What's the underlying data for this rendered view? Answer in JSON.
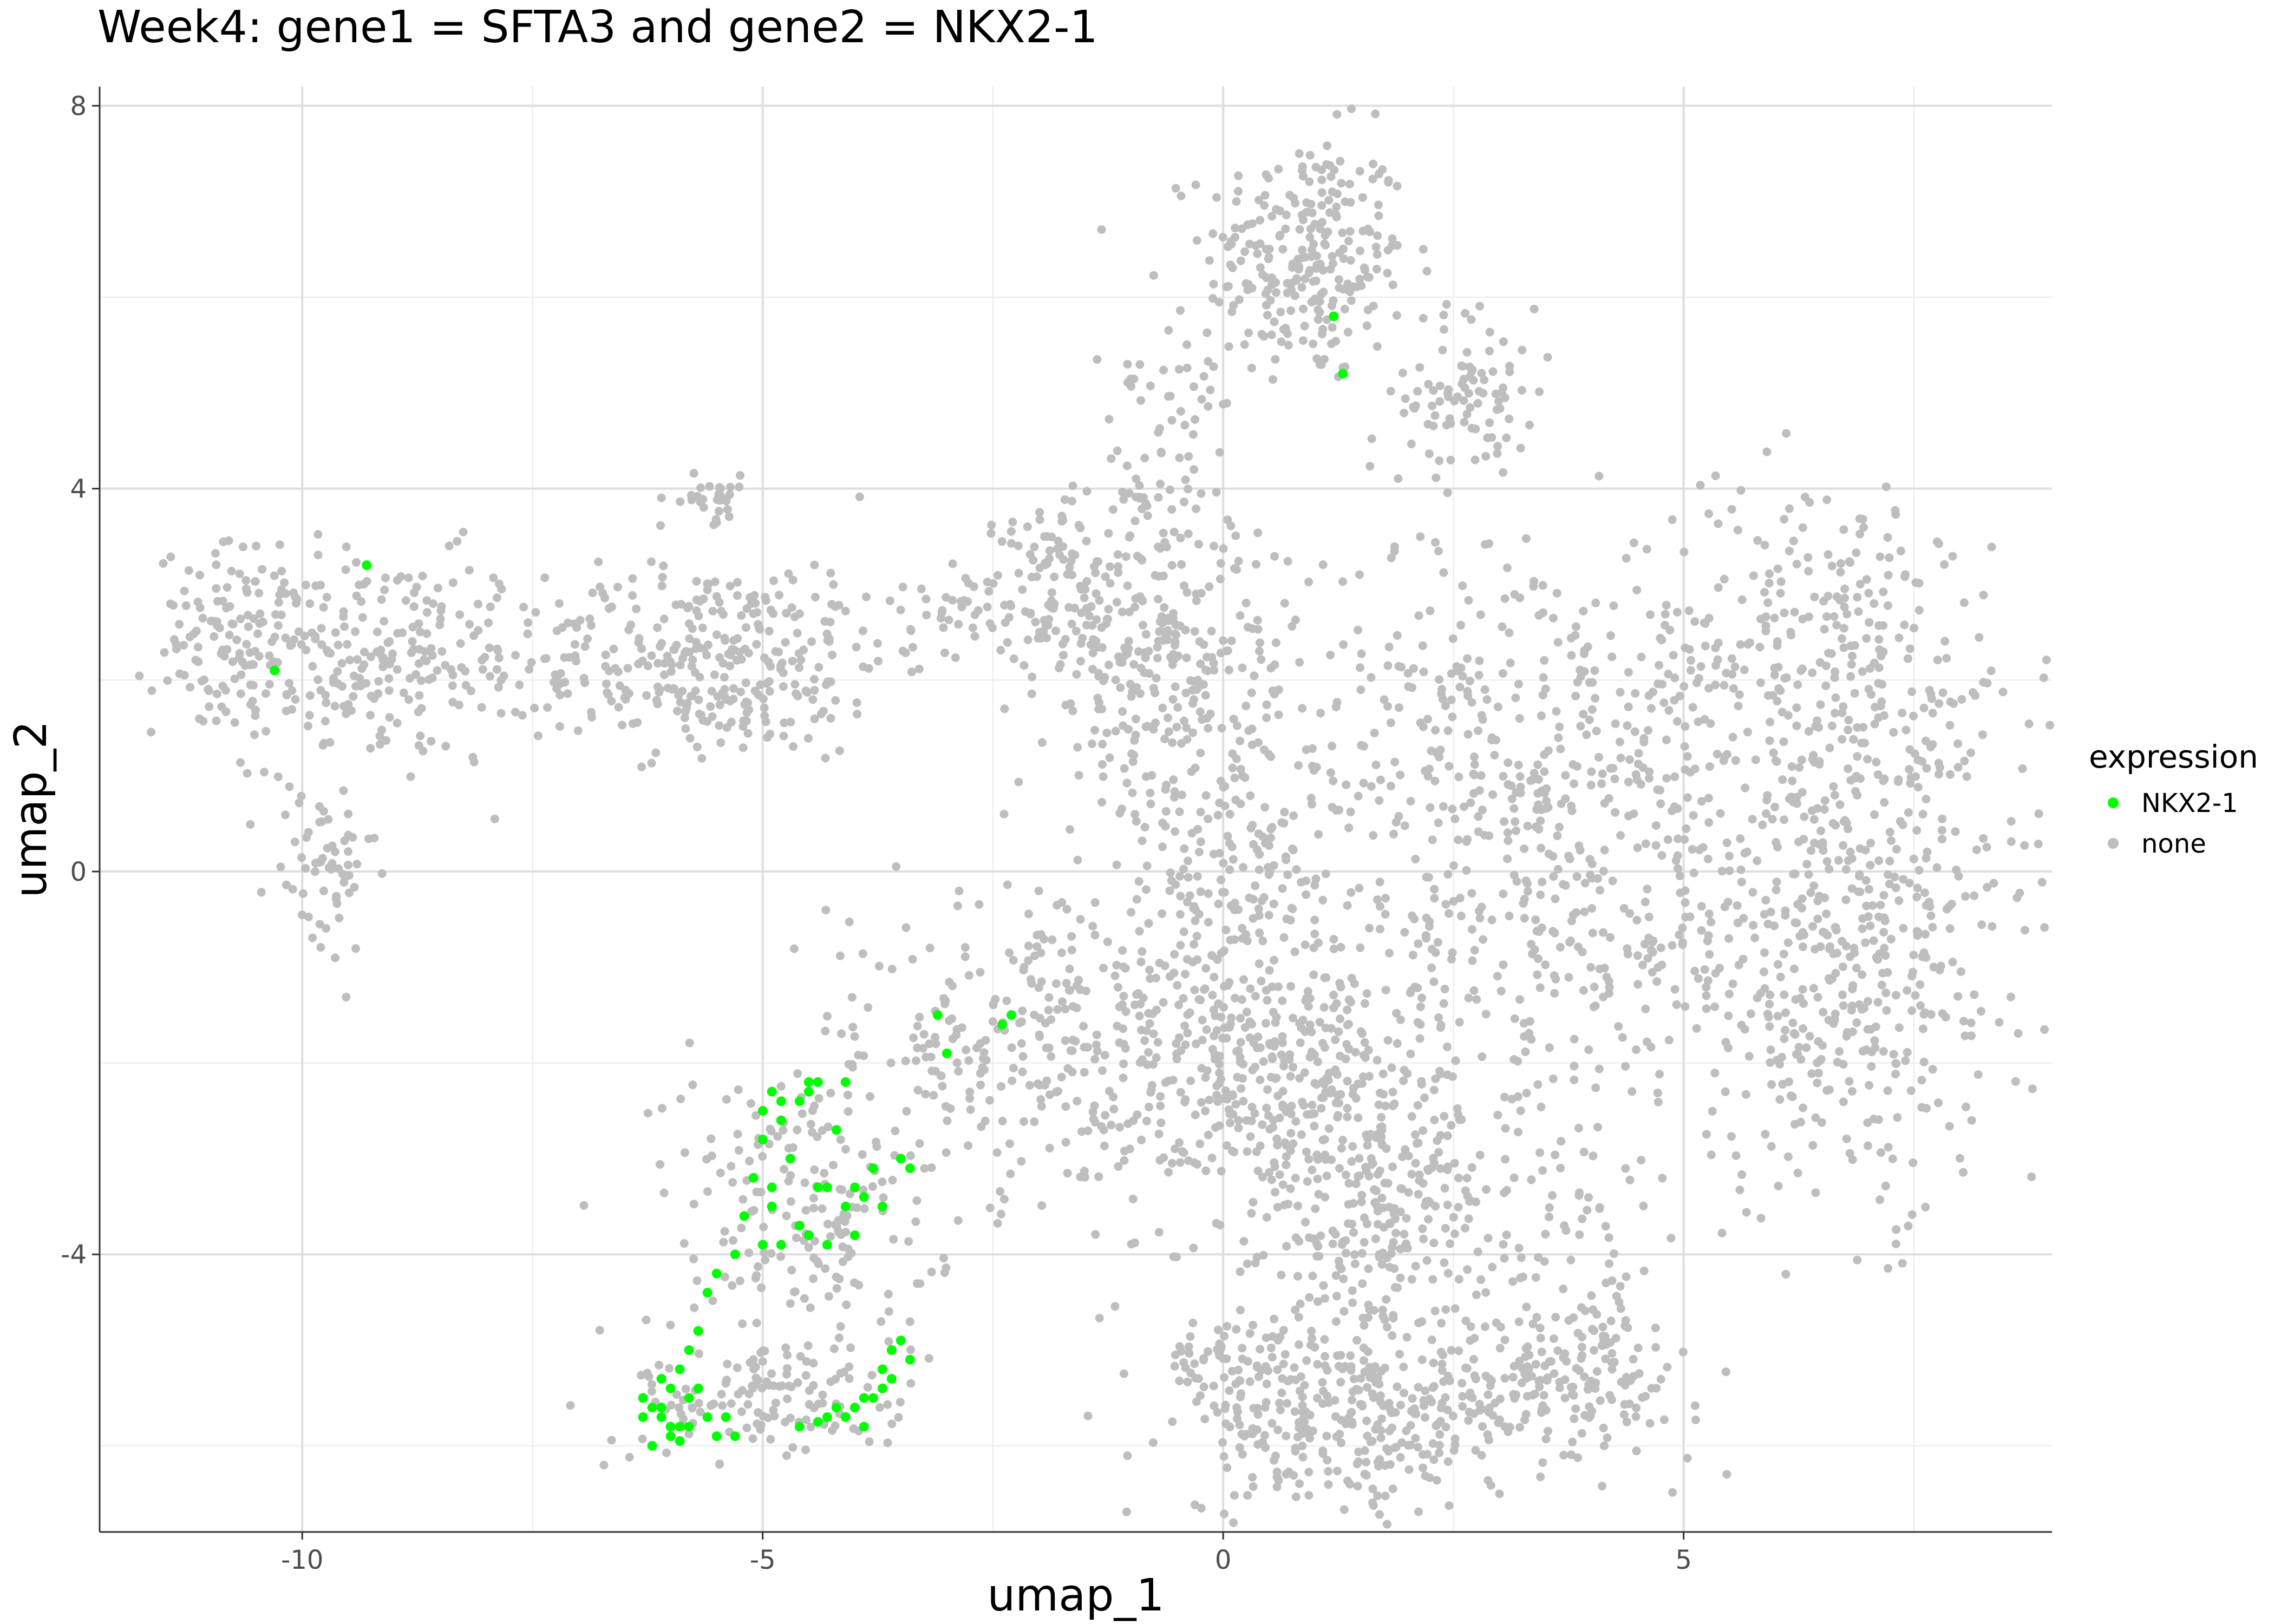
{
  "chart_data": {
    "type": "scatter",
    "title": "Week4: gene1 = SFTA3 and gene2 = NKX2-1",
    "xlabel": "umap_1",
    "ylabel": "umap_2",
    "xlim": [
      -12.2,
      9.0
    ],
    "ylim": [
      -6.9,
      8.2
    ],
    "x_ticks": [
      -10,
      -5,
      0,
      5
    ],
    "x_tick_labels": [
      "-10",
      "-5",
      "0",
      "5"
    ],
    "y_ticks": [
      -4,
      0,
      4,
      8
    ],
    "y_tick_labels": [
      "-4",
      "0",
      "4",
      "8"
    ],
    "x_minor_ticks": [
      -7.5,
      -2.5,
      2.5,
      7.5
    ],
    "y_minor_ticks": [
      -6,
      -2,
      2,
      6
    ],
    "grid": true,
    "legend": {
      "title": "expression",
      "placement": "right",
      "entries": [
        {
          "label": "NKX2-1",
          "color": "#00ff00"
        },
        {
          "label": "none",
          "color": "#bebebe"
        }
      ]
    },
    "series": [
      {
        "name": "NKX2-1",
        "color": "#00ff00",
        "x": [
          1.2,
          1.3,
          -9.3,
          -10.3,
          -3.1,
          -3.0,
          -2.3,
          -2.4,
          -4.4,
          -4.1,
          -4.9,
          -4.8,
          -5.0,
          -4.6,
          -4.5,
          -5.1,
          -4.9,
          -4.7,
          -4.3,
          -4.1,
          -4.0,
          -3.8,
          -3.9,
          -3.5,
          -3.4,
          -4.8,
          -4.6,
          -4.5,
          -4.3,
          -5.2,
          -4.4,
          -4.0,
          -3.7,
          -5.3,
          -5.5,
          -5.6,
          -5.0,
          -5.7,
          -5.8,
          -5.9,
          -6.0,
          -6.1,
          -6.2,
          -6.0,
          -6.3,
          -5.8,
          -5.7,
          -5.5,
          -5.4,
          -6.1,
          -6.0,
          -5.9,
          -6.2,
          -6.3,
          -6.1,
          -5.9,
          -5.8,
          -5.6,
          -5.3,
          -4.6,
          -4.4,
          -4.3,
          -4.2,
          -4.0,
          -3.9,
          -3.8,
          -3.7,
          -3.6,
          -4.1,
          -3.9,
          -3.5,
          -3.4,
          -3.7,
          -3.6,
          -4.8,
          -5.0,
          -4.9,
          -4.5,
          -4.2
        ],
        "y": [
          5.8,
          5.2,
          3.2,
          2.1,
          -1.5,
          -1.9,
          -1.5,
          -1.6,
          -2.2,
          -2.2,
          -2.3,
          -2.6,
          -2.8,
          -2.4,
          -2.3,
          -3.2,
          -3.5,
          -3.0,
          -3.3,
          -3.5,
          -3.3,
          -3.1,
          -3.4,
          -3.0,
          -3.1,
          -3.9,
          -3.7,
          -3.8,
          -3.9,
          -3.6,
          -3.3,
          -3.8,
          -3.5,
          -4.0,
          -4.2,
          -4.4,
          -3.9,
          -4.8,
          -5.0,
          -5.2,
          -5.4,
          -5.3,
          -5.6,
          -5.8,
          -5.7,
          -5.8,
          -5.4,
          -5.9,
          -5.7,
          -5.7,
          -5.9,
          -5.95,
          -6.0,
          -5.5,
          -5.6,
          -5.8,
          -5.5,
          -5.7,
          -5.9,
          -5.8,
          -5.75,
          -5.7,
          -5.6,
          -5.6,
          -5.5,
          -5.5,
          -5.4,
          -5.0,
          -5.7,
          -5.8,
          -4.9,
          -5.1,
          -5.2,
          -5.3,
          -2.4,
          -2.5,
          -3.3,
          -2.2,
          -2.7
        ]
      },
      {
        "name": "none",
        "color": "#bebebe",
        "clusters": [
          {
            "cx": 0.9,
            "cy": 6.4,
            "sx": 0.55,
            "sy": 0.65,
            "n": 260
          },
          {
            "cx": 2.7,
            "cy": 5.0,
            "sx": 0.35,
            "sy": 0.45,
            "n": 90
          },
          {
            "cx": -0.7,
            "cy": 4.2,
            "sx": 0.45,
            "sy": 0.8,
            "n": 90
          },
          {
            "cx": -10.6,
            "cy": 2.4,
            "sx": 0.5,
            "sy": 0.5,
            "n": 150
          },
          {
            "cx": -9.0,
            "cy": 2.2,
            "sx": 0.8,
            "sy": 0.55,
            "n": 200
          },
          {
            "cx": -9.8,
            "cy": 0.0,
            "sx": 0.3,
            "sy": 0.5,
            "n": 60
          },
          {
            "cx": -5.6,
            "cy": 2.2,
            "sx": 1.0,
            "sy": 0.5,
            "n": 320
          },
          {
            "cx": -5.6,
            "cy": 3.9,
            "sx": 0.25,
            "sy": 0.12,
            "n": 30
          },
          {
            "cx": -2.8,
            "cy": 2.8,
            "sx": 0.8,
            "sy": 0.25,
            "n": 70
          },
          {
            "cx": -1.0,
            "cy": 2.4,
            "sx": 0.7,
            "sy": 0.6,
            "n": 230
          },
          {
            "cx": -0.2,
            "cy": 1.0,
            "sx": 0.6,
            "sy": 0.9,
            "n": 130
          },
          {
            "cx": 3.2,
            "cy": 1.5,
            "sx": 1.4,
            "sy": 1.1,
            "n": 380
          },
          {
            "cx": 6.6,
            "cy": 2.2,
            "sx": 1.1,
            "sy": 1.0,
            "n": 280
          },
          {
            "cx": 6.8,
            "cy": -0.9,
            "sx": 1.1,
            "sy": 1.3,
            "n": 500
          },
          {
            "cx": 3.6,
            "cy": -0.7,
            "sx": 1.1,
            "sy": 0.9,
            "n": 230
          },
          {
            "cx": -1.4,
            "cy": -1.8,
            "sx": 1.1,
            "sy": 0.8,
            "n": 280
          },
          {
            "cx": 0.8,
            "cy": -2.2,
            "sx": 0.9,
            "sy": 1.0,
            "n": 420
          },
          {
            "cx": 1.8,
            "cy": -3.8,
            "sx": 0.7,
            "sy": 0.8,
            "n": 240
          },
          {
            "cx": 1.3,
            "cy": -5.8,
            "sx": 0.9,
            "sy": 0.45,
            "n": 260
          },
          {
            "cx": 3.6,
            "cy": -5.3,
            "sx": 0.8,
            "sy": 0.4,
            "n": 200
          },
          {
            "cx": 0.1,
            "cy": -5.1,
            "sx": 0.4,
            "sy": 0.2,
            "n": 60
          },
          {
            "cx": 4.0,
            "cy": -4.0,
            "sx": 0.35,
            "sy": 0.7,
            "n": 50
          },
          {
            "cx": -4.6,
            "cy": -3.5,
            "sx": 0.75,
            "sy": 0.9,
            "n": 200
          },
          {
            "cx": -4.9,
            "cy": -5.5,
            "sx": 0.75,
            "sy": 0.35,
            "n": 130
          },
          {
            "cx": -2.7,
            "cy": -1.7,
            "sx": 0.5,
            "sy": 0.6,
            "n": 60
          },
          {
            "cx": -1.8,
            "cy": 3.3,
            "sx": 0.3,
            "sy": 0.3,
            "n": 40
          },
          {
            "cx": 0.2,
            "cy": -0.2,
            "sx": 0.4,
            "sy": 0.4,
            "n": 60
          }
        ]
      }
    ]
  }
}
